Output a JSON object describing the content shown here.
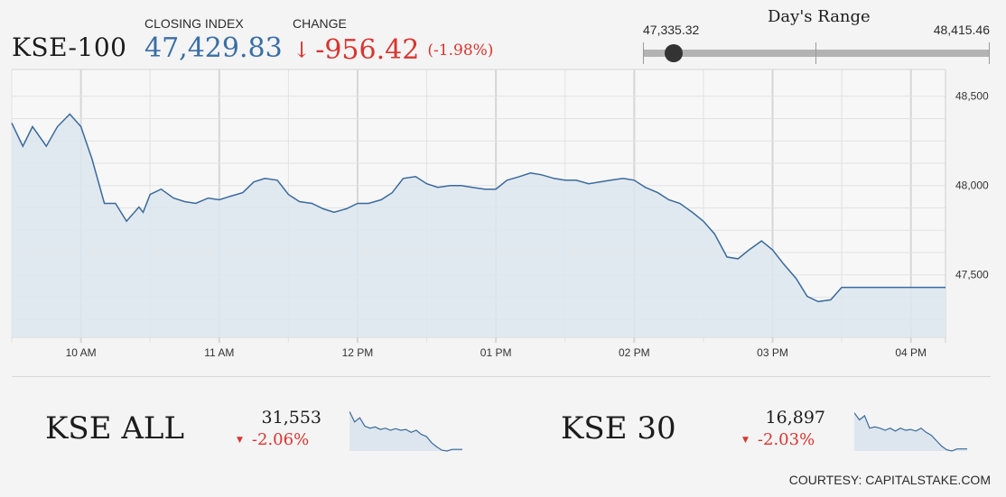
{
  "header": {
    "index_name": "KSE-100",
    "closing_label": "CLOSING INDEX",
    "closing_value": "47,429.83",
    "change_label": "CHANGE",
    "change_arrow": "↓",
    "change_value": "-956.42",
    "change_pct": "(-1.98%)"
  },
  "days_range": {
    "title": "Day's Range",
    "low": "47,335.32",
    "high": "48,415.46",
    "low_value": 47335.32,
    "high_value": 48415.46,
    "current_value": 47429.83
  },
  "colors": {
    "line": "#3a6a9c",
    "fill": "#dde6ee",
    "grid": "#e2e2e2",
    "closing": "#3a6ea5",
    "negative": "#d9352f"
  },
  "chart_data": {
    "type": "area",
    "title": "KSE-100",
    "x_unit": "hours",
    "xlim": [
      9.5,
      16.25
    ],
    "ylim": [
      47150,
      48650
    ],
    "y_ticks": [
      48500,
      48000,
      47500
    ],
    "y_tick_labels": [
      "48,500",
      "48,000",
      "47,500"
    ],
    "x_ticks": [
      10,
      11,
      12,
      13,
      14,
      15,
      16
    ],
    "x_tick_labels": [
      "10 AM",
      "11 AM",
      "12 PM",
      "01 PM",
      "02 PM",
      "03 PM",
      "04 PM"
    ],
    "grid": true,
    "series": [
      {
        "x": [
          9.5,
          9.58,
          9.65,
          9.75,
          9.83,
          9.92,
          10.0,
          10.08,
          10.17,
          10.25,
          10.33,
          10.42,
          10.45,
          10.5,
          10.58,
          10.67,
          10.75,
          10.83,
          10.92,
          11.0,
          11.08,
          11.17,
          11.25,
          11.33,
          11.42,
          11.5,
          11.58,
          11.67,
          11.75,
          11.83,
          11.92,
          12.0,
          12.08,
          12.17,
          12.25,
          12.33,
          12.42,
          12.5,
          12.58,
          12.67,
          12.75,
          12.83,
          12.92,
          13.0,
          13.08,
          13.17,
          13.25,
          13.33,
          13.42,
          13.5,
          13.58,
          13.67,
          13.75,
          13.83,
          13.92,
          14.0,
          14.08,
          14.17,
          14.25,
          14.33,
          14.42,
          14.5,
          14.58,
          14.67,
          14.75,
          14.83,
          14.92,
          15.0,
          15.08,
          15.17,
          15.25,
          15.33,
          15.42,
          15.5,
          16.25
        ],
        "y": [
          48350,
          48220,
          48330,
          48220,
          48330,
          48400,
          48330,
          48150,
          47900,
          47900,
          47800,
          47880,
          47850,
          47950,
          47980,
          47930,
          47910,
          47900,
          47930,
          47920,
          47940,
          47960,
          48020,
          48040,
          48030,
          47950,
          47910,
          47900,
          47870,
          47850,
          47870,
          47900,
          47900,
          47920,
          47960,
          48040,
          48050,
          48010,
          47990,
          48000,
          48000,
          47990,
          47980,
          47980,
          48030,
          48050,
          48070,
          48060,
          48040,
          48030,
          48030,
          48010,
          48020,
          48030,
          48040,
          48030,
          47990,
          47960,
          47920,
          47900,
          47850,
          47800,
          47730,
          47600,
          47590,
          47640,
          47690,
          47640,
          47560,
          47480,
          47380,
          47350,
          47360,
          47430,
          47430
        ]
      }
    ]
  },
  "mini_indices": [
    {
      "name": "KSE ALL",
      "value": "31,553",
      "change": "-2.06%",
      "trend": [
        0.95,
        0.7,
        0.8,
        0.6,
        0.55,
        0.58,
        0.52,
        0.55,
        0.5,
        0.54,
        0.5,
        0.52,
        0.45,
        0.5,
        0.4,
        0.35,
        0.2,
        0.1,
        0.02,
        0.0,
        0.04,
        0.04,
        0.04
      ]
    },
    {
      "name": "KSE 30",
      "value": "16,897",
      "change": "-2.03%",
      "trend": [
        0.92,
        0.75,
        0.85,
        0.55,
        0.58,
        0.55,
        0.5,
        0.55,
        0.48,
        0.55,
        0.5,
        0.52,
        0.48,
        0.55,
        0.45,
        0.38,
        0.25,
        0.12,
        0.03,
        0.0,
        0.05,
        0.05,
        0.05
      ]
    }
  ],
  "footer": {
    "courtesy": "COURTESY: CAPITALSTAKE.COM"
  }
}
